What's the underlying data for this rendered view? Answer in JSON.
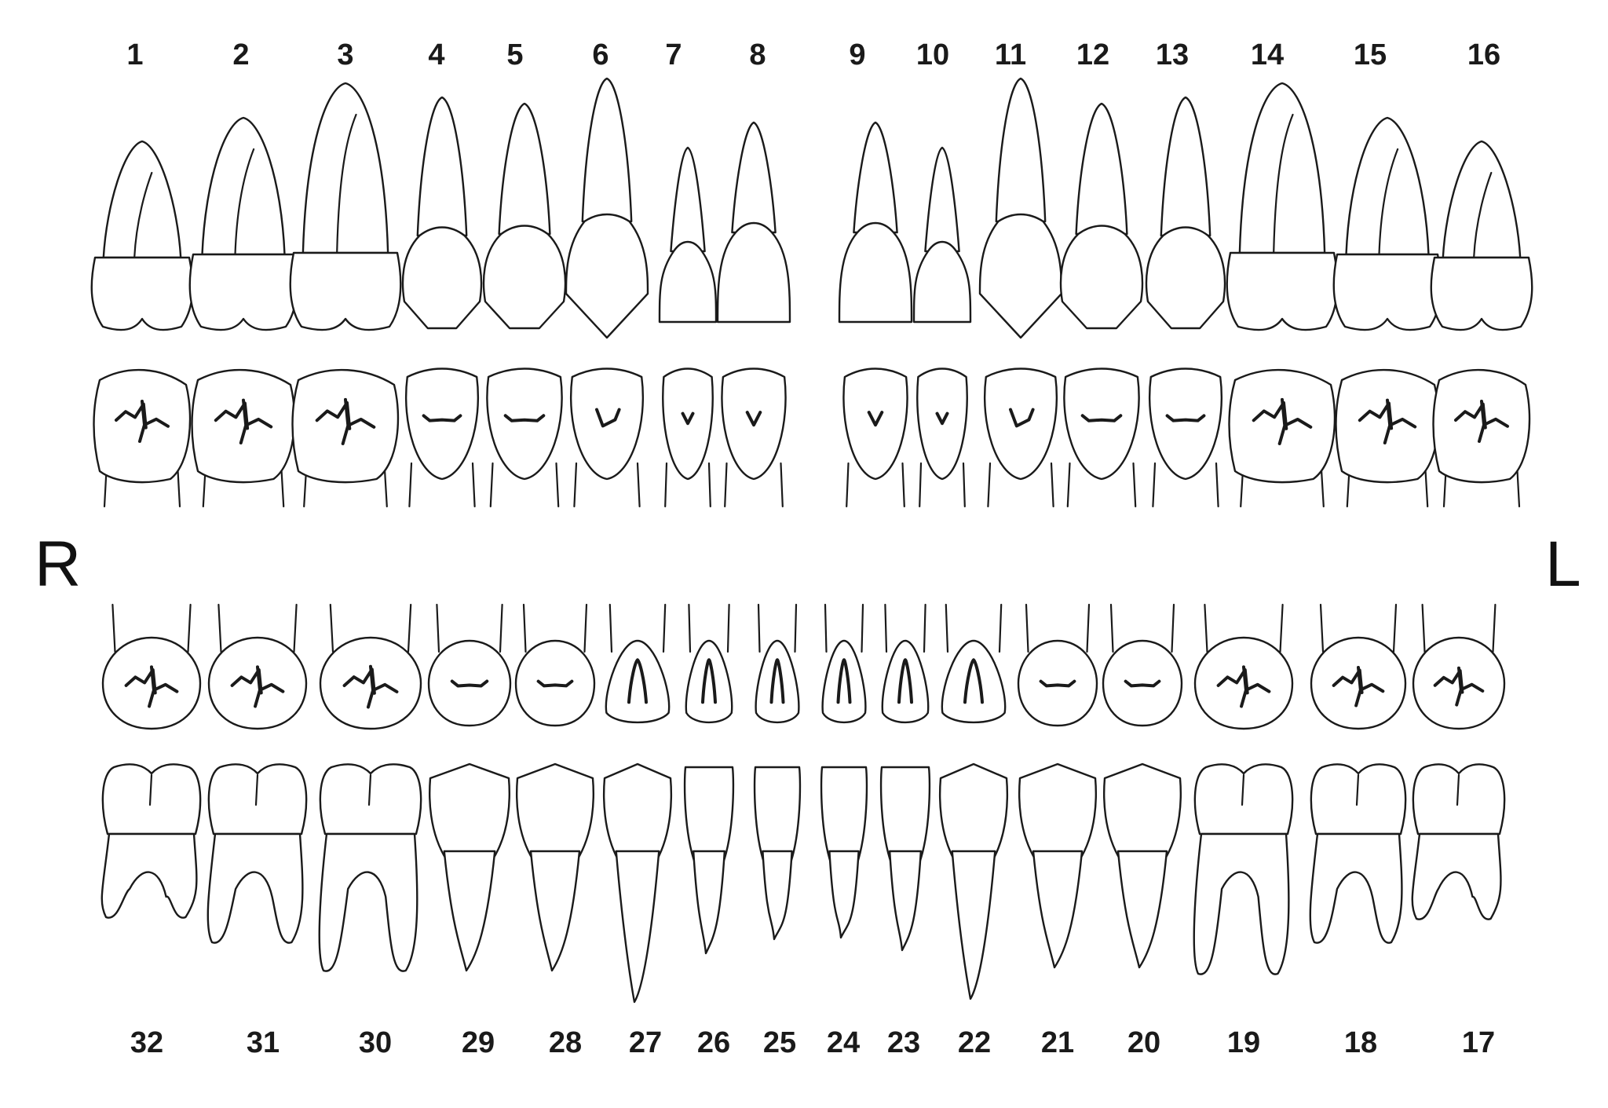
{
  "side_labels": {
    "right": "R",
    "left": "L"
  },
  "upper_arch": {
    "teeth": [
      {
        "number": "1",
        "type": "molar"
      },
      {
        "number": "2",
        "type": "molar"
      },
      {
        "number": "3",
        "type": "molar"
      },
      {
        "number": "4",
        "type": "premolar"
      },
      {
        "number": "5",
        "type": "premolar"
      },
      {
        "number": "6",
        "type": "canine"
      },
      {
        "number": "7",
        "type": "lateral-incisor"
      },
      {
        "number": "8",
        "type": "central-incisor"
      },
      {
        "number": "9",
        "type": "central-incisor"
      },
      {
        "number": "10",
        "type": "lateral-incisor"
      },
      {
        "number": "11",
        "type": "canine"
      },
      {
        "number": "12",
        "type": "premolar"
      },
      {
        "number": "13",
        "type": "premolar"
      },
      {
        "number": "14",
        "type": "molar"
      },
      {
        "number": "15",
        "type": "molar"
      },
      {
        "number": "16",
        "type": "molar"
      }
    ]
  },
  "lower_arch": {
    "teeth": [
      {
        "number": "32",
        "type": "molar"
      },
      {
        "number": "31",
        "type": "molar"
      },
      {
        "number": "30",
        "type": "molar"
      },
      {
        "number": "29",
        "type": "premolar"
      },
      {
        "number": "28",
        "type": "premolar"
      },
      {
        "number": "27",
        "type": "canine"
      },
      {
        "number": "26",
        "type": "lateral-incisor"
      },
      {
        "number": "25",
        "type": "central-incisor"
      },
      {
        "number": "24",
        "type": "central-incisor"
      },
      {
        "number": "23",
        "type": "lateral-incisor"
      },
      {
        "number": "22",
        "type": "canine"
      },
      {
        "number": "21",
        "type": "premolar"
      },
      {
        "number": "20",
        "type": "premolar"
      },
      {
        "number": "19",
        "type": "molar"
      },
      {
        "number": "18",
        "type": "molar"
      },
      {
        "number": "17",
        "type": "molar"
      }
    ]
  },
  "colors": {
    "line": "#1a1a1a",
    "background": "#ffffff"
  }
}
